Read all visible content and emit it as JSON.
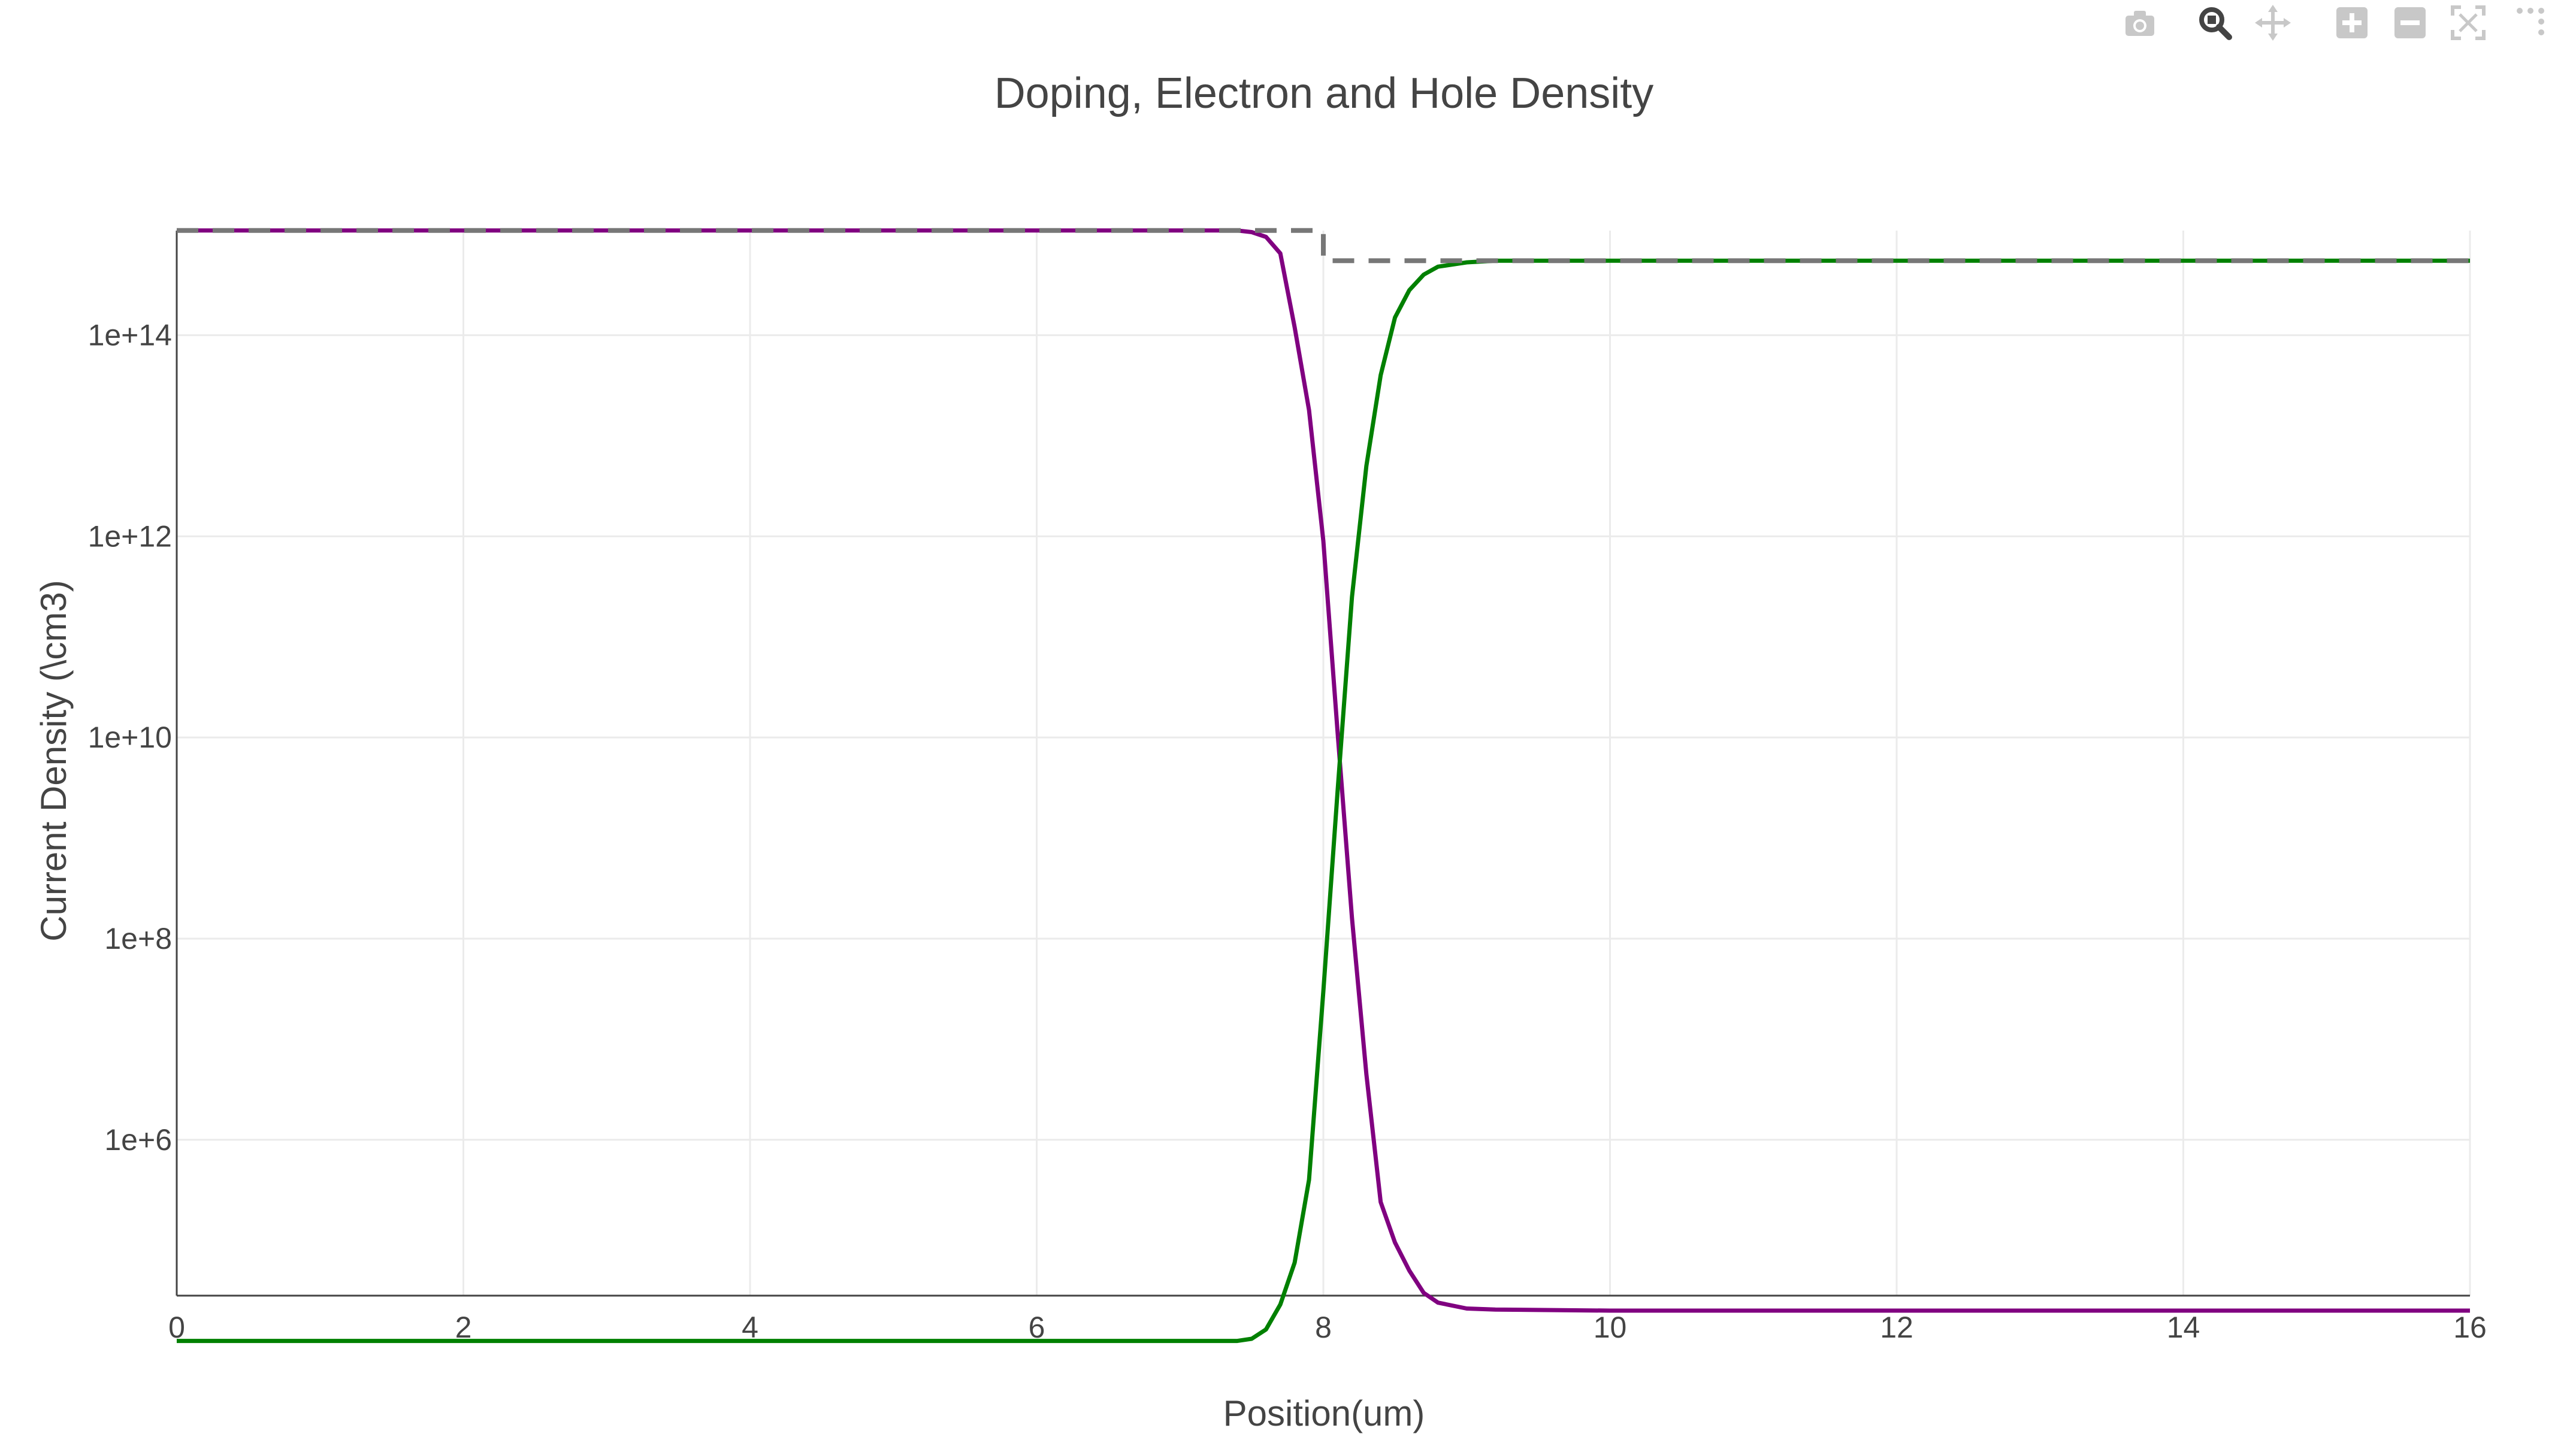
{
  "modebar": {
    "buttons": [
      {
        "name": "camera-icon"
      },
      {
        "name": "zoom-icon"
      },
      {
        "name": "pan-icon"
      },
      {
        "name": "zoom-in-icon"
      },
      {
        "name": "zoom-out-icon"
      },
      {
        "name": "autoscale-icon"
      },
      {
        "name": "reset-axes-icon"
      }
    ],
    "active_color": "#444444",
    "inactive_color": "#c8c8c8"
  },
  "chart_data": {
    "type": "line",
    "title": "Doping, Electron and Hole Density",
    "xlabel": "Position(um)",
    "ylabel": "Current Density (\\cm3)",
    "xlim": [
      0,
      16
    ],
    "ylim_log10": [
      4.45,
      15.04
    ],
    "yscale": "log",
    "grid": true,
    "legend": "none",
    "xticks": [
      0,
      2,
      4,
      6,
      8,
      10,
      12,
      14,
      16
    ],
    "xtick_labels": [
      "0",
      "2",
      "4",
      "6",
      "8",
      "10",
      "12",
      "14",
      "16"
    ],
    "yticks_log10": [
      6,
      8,
      10,
      12,
      14
    ],
    "ytick_labels": [
      "1e+6",
      "1e+8",
      "1e+10",
      "1e+12",
      "1e+14"
    ],
    "series": [
      {
        "style": "dashed",
        "color": "#777777",
        "x": [
          0,
          8,
          8,
          16
        ],
        "y": [
          1100000000000000.0,
          1100000000000000.0,
          550000000000000.0,
          550000000000000.0
        ]
      },
      {
        "style": "solid",
        "color": "#800080",
        "x": [
          0,
          7.4,
          7.5,
          7.6,
          7.7,
          7.8,
          7.9,
          8.0,
          8.1,
          8.2,
          8.3,
          8.4,
          8.5,
          8.6,
          8.7,
          8.8,
          9.0,
          9.2,
          10,
          12,
          16
        ],
        "y": [
          1100000000000000.0,
          1100000000000000.0,
          1060000000000000.0,
          950000000000000.0,
          650000000000000.0,
          120000000000000.0,
          18000000000000.0,
          900000000000.0,
          11000000000.0,
          160000000.0,
          4500000.0,
          240000.0,
          95000.0,
          50000.0,
          30000.0,
          24000.0,
          21000.0,
          20500.0,
          20000.0,
          20000.0,
          20000.0
        ]
      },
      {
        "style": "solid",
        "color": "#008000",
        "x": [
          0,
          7.4,
          7.5,
          7.6,
          7.7,
          7.8,
          7.9,
          8.0,
          8.1,
          8.2,
          8.3,
          8.4,
          8.5,
          8.6,
          8.7,
          8.8,
          9.0,
          9.2,
          10,
          12,
          16
        ],
        "y": [
          10000.0,
          10000.0,
          10500.0,
          13000.0,
          23000.0,
          60000.0,
          400000.0,
          30000000.0,
          3000000000.0,
          250000000000.0,
          5000000000000.0,
          40000000000000.0,
          150000000000000.0,
          280000000000000.0,
          400000000000000.0,
          480000000000000.0,
          530000000000000.0,
          550000000000000.0,
          550000000000000.0,
          550000000000000.0,
          550000000000000.0
        ]
      }
    ]
  }
}
